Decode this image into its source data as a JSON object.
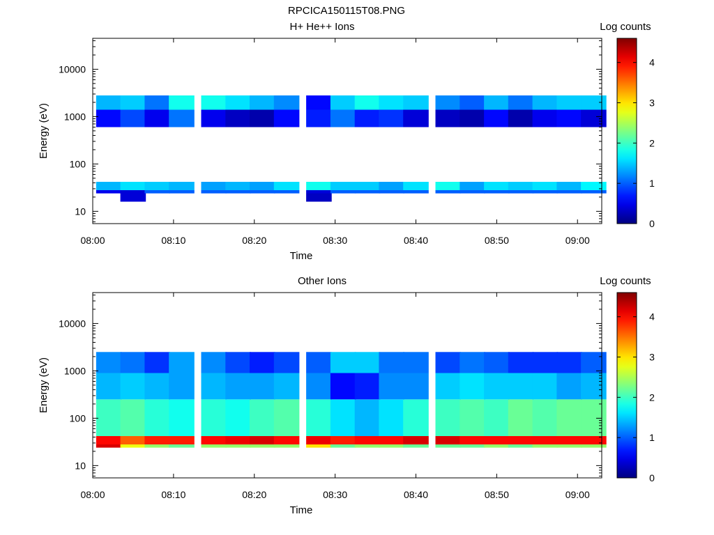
{
  "figure_title": "RPCICA150115T08.PNG",
  "chart_data": [
    {
      "type": "heatmap",
      "title": "H+ He++ Ions",
      "xlabel": "Time",
      "ylabel": "Energy (eV)",
      "yscale": "log",
      "ylim": [
        5.5,
        45000
      ],
      "xlim": [
        "08:00",
        "09:03"
      ],
      "x_ticks": [
        "08:00",
        "08:10",
        "08:20",
        "08:30",
        "08:40",
        "08:50",
        "09:00"
      ],
      "y_ticks": [
        "10",
        "100",
        "1000",
        "10000"
      ],
      "colorbar": {
        "label": "Log counts",
        "range": [
          0,
          4.6
        ],
        "ticks": [
          "0",
          "1",
          "2",
          "3",
          "4"
        ]
      },
      "time_columns": [
        "08:02",
        "08:05",
        "08:08",
        "08:11",
        "08:15",
        "08:18",
        "08:21",
        "08:24",
        "08:28",
        "08:31",
        "08:34",
        "08:37",
        "08:40",
        "08:44",
        "08:47",
        "08:50",
        "08:53",
        "08:56",
        "08:59",
        "09:02"
      ],
      "bands": [
        {
          "e": [
            28,
            42
          ],
          "v": [
            1.4,
            1.6,
            1.5,
            1.4,
            1.3,
            1.4,
            1.3,
            1.6,
            1.8,
            1.5,
            1.5,
            1.3,
            1.6,
            1.8,
            1.3,
            1.6,
            1.5,
            1.6,
            1.4,
            1.7
          ]
        },
        {
          "e": [
            24,
            28
          ],
          "v": [
            0.5,
            0.4,
            1.0,
            1.0,
            1.0,
            1.0,
            1.0,
            1.0,
            0.4,
            1.0,
            1.0,
            1.0,
            1.0,
            1.0,
            1.0,
            1.0,
            1.0,
            1.0,
            1.0,
            1.0
          ]
        },
        {
          "e": [
            600,
            1400
          ],
          "v": [
            0.6,
            0.9,
            0.5,
            1.1,
            0.5,
            0.3,
            0.2,
            0.6,
            0.7,
            1.1,
            0.7,
            0.8,
            0.4,
            0.3,
            0.2,
            0.6,
            0.2,
            0.5,
            0.6,
            0.4
          ]
        },
        {
          "e": [
            1400,
            2800
          ],
          "v": [
            1.4,
            1.5,
            1.1,
            1.8,
            1.8,
            1.6,
            1.4,
            1.2,
            0.6,
            1.5,
            1.8,
            1.6,
            1.5,
            1.2,
            1.0,
            1.4,
            1.1,
            1.4,
            1.5,
            1.5
          ]
        },
        {
          "e": [
            16,
            24
          ],
          "v": [
            null,
            0.4,
            null,
            null,
            null,
            null,
            null,
            null,
            0.3,
            null,
            null,
            null,
            null,
            null,
            null,
            null,
            null,
            null,
            null,
            null
          ]
        }
      ]
    },
    {
      "type": "heatmap",
      "title": "Other Ions",
      "xlabel": "Time",
      "ylabel": "Energy (eV)",
      "yscale": "log",
      "ylim": [
        5.5,
        45000
      ],
      "xlim": [
        "08:00",
        "09:03"
      ],
      "x_ticks": [
        "08:00",
        "08:10",
        "08:20",
        "08:30",
        "08:40",
        "08:50",
        "09:00"
      ],
      "y_ticks": [
        "10",
        "100",
        "1000",
        "10000"
      ],
      "colorbar": {
        "label": "Log counts",
        "range": [
          0,
          4.6
        ],
        "ticks": [
          "0",
          "1",
          "2",
          "3",
          "4"
        ]
      },
      "time_columns": [
        "08:02",
        "08:05",
        "08:08",
        "08:11",
        "08:15",
        "08:18",
        "08:21",
        "08:24",
        "08:28",
        "08:31",
        "08:34",
        "08:37",
        "08:40",
        "08:44",
        "08:47",
        "08:50",
        "08:53",
        "08:56",
        "08:59",
        "09:02"
      ],
      "bands": [
        {
          "e": [
            28,
            42
          ],
          "v": [
            4.0,
            3.6,
            3.9,
            3.9,
            4.0,
            4.1,
            4.2,
            4.0,
            4.1,
            3.9,
            4.0,
            4.0,
            4.2,
            4.2,
            4.0,
            4.0,
            4.0,
            4.0,
            4.0,
            4.0
          ]
        },
        {
          "e": [
            24,
            28
          ],
          "v": [
            4.2,
            2.8,
            2.4,
            2.2,
            2.4,
            2.4,
            2.4,
            2.4,
            3.0,
            2.2,
            2.4,
            2.4,
            2.2,
            2.2,
            2.2,
            2.4,
            2.2,
            2.4,
            2.4,
            2.4
          ]
        },
        {
          "e": [
            42,
            250
          ],
          "v": [
            2.0,
            2.1,
            1.9,
            1.8,
            1.9,
            1.8,
            2.0,
            2.1,
            1.9,
            1.6,
            1.4,
            1.6,
            1.9,
            2.0,
            2.1,
            2.0,
            2.2,
            2.1,
            2.2,
            2.2
          ]
        },
        {
          "e": [
            250,
            900
          ],
          "v": [
            1.4,
            1.5,
            1.4,
            1.3,
            1.4,
            1.3,
            1.3,
            1.4,
            1.2,
            0.6,
            0.7,
            1.2,
            1.2,
            1.5,
            1.6,
            1.5,
            1.5,
            1.5,
            1.3,
            1.4
          ]
        },
        {
          "e": [
            900,
            2500
          ],
          "v": [
            1.2,
            1.1,
            0.8,
            1.3,
            1.2,
            0.9,
            0.7,
            0.9,
            1.0,
            1.5,
            1.5,
            1.1,
            1.1,
            0.9,
            1.1,
            1.0,
            0.8,
            0.8,
            0.8,
            1.0
          ]
        }
      ]
    }
  ]
}
